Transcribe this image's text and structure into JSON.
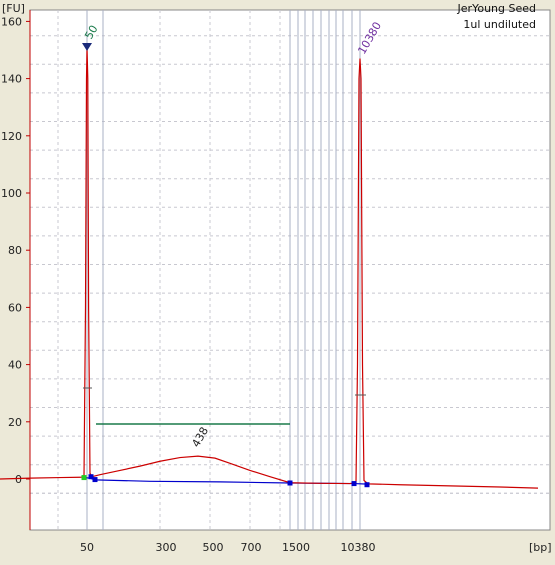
{
  "chart_data": {
    "type": "line",
    "y_unit": "[FU]",
    "x_unit": "[bp]",
    "ylim": [
      -9,
      165
    ],
    "y_ticks": [
      "160",
      "140",
      "120",
      "100",
      "80",
      "60",
      "40",
      "20",
      "0"
    ],
    "x_ticks": [
      "50",
      "300",
      "500",
      "700",
      "1500",
      "10380"
    ],
    "annotations": [
      "JerYoung Seed",
      "1ul undiluted"
    ],
    "peaks": [
      {
        "label": "50",
        "bp": 50,
        "fu": 151
      },
      {
        "label": "10380",
        "bp": 10380,
        "fu": 147
      },
      {
        "label": "438",
        "bp": 438,
        "fu": 8
      }
    ],
    "grid": true,
    "colors": {
      "trace": "#cc0000",
      "baseline": "#0000cc",
      "region": "#1a7a4a",
      "marker_50": "#1a7a4a",
      "marker_10380": "#7030a0",
      "ladder_lines": "#aab0c4",
      "grid_major": "#a8aab8"
    }
  }
}
